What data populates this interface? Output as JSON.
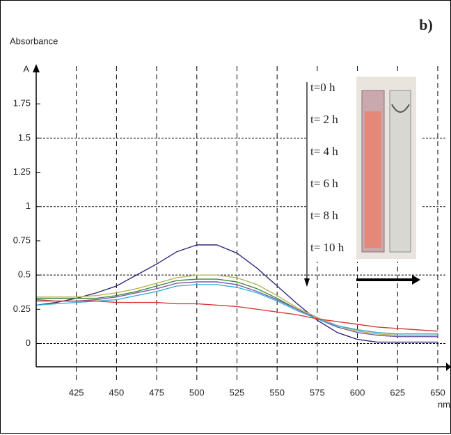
{
  "chart_data": {
    "type": "line",
    "panel_label": "b)",
    "y_label": "Absorbance",
    "y_axis_symbol": "A",
    "x_label": "nm",
    "time_labels": [
      "t=0 h",
      "t= 2 h",
      "t= 4 h",
      "t= 6 h",
      "t= 8 h",
      "t= 10 h"
    ],
    "x": [
      400,
      412.5,
      425,
      437.5,
      450,
      462.5,
      475,
      487.5,
      500,
      512.5,
      525,
      537.5,
      550,
      562.5,
      575,
      587.5,
      600,
      612.5,
      625,
      637.5,
      650
    ],
    "series": [
      {
        "color": "#2e2a7a",
        "values": [
          0.28,
          0.3,
          0.33,
          0.37,
          0.42,
          0.5,
          0.58,
          0.67,
          0.72,
          0.72,
          0.66,
          0.55,
          0.42,
          0.29,
          0.17,
          0.08,
          0.03,
          0.01,
          0.01,
          0.01,
          0.01
        ]
      },
      {
        "color": "#b8b25a",
        "values": [
          0.34,
          0.34,
          0.34,
          0.35,
          0.37,
          0.4,
          0.44,
          0.48,
          0.5,
          0.5,
          0.48,
          0.43,
          0.35,
          0.26,
          0.19,
          0.13,
          0.09,
          0.07,
          0.06,
          0.06,
          0.06
        ]
      },
      {
        "color": "#3f8a3f",
        "values": [
          0.33,
          0.33,
          0.33,
          0.33,
          0.35,
          0.38,
          0.42,
          0.46,
          0.47,
          0.47,
          0.45,
          0.4,
          0.33,
          0.25,
          0.18,
          0.13,
          0.1,
          0.08,
          0.07,
          0.07,
          0.07
        ]
      },
      {
        "color": "#7a5aa8",
        "values": [
          0.31,
          0.31,
          0.31,
          0.32,
          0.34,
          0.37,
          0.4,
          0.44,
          0.45,
          0.45,
          0.43,
          0.38,
          0.32,
          0.25,
          0.18,
          0.12,
          0.08,
          0.06,
          0.05,
          0.05,
          0.05
        ]
      },
      {
        "color": "#3ab0d8",
        "values": [
          0.28,
          0.29,
          0.3,
          0.31,
          0.32,
          0.35,
          0.38,
          0.42,
          0.43,
          0.43,
          0.41,
          0.37,
          0.31,
          0.24,
          0.18,
          0.13,
          0.1,
          0.08,
          0.07,
          0.07,
          0.07
        ]
      },
      {
        "color": "#d83a3a",
        "values": [
          0.32,
          0.31,
          0.31,
          0.31,
          0.3,
          0.3,
          0.3,
          0.29,
          0.29,
          0.28,
          0.27,
          0.25,
          0.23,
          0.21,
          0.18,
          0.16,
          0.14,
          0.12,
          0.11,
          0.1,
          0.09
        ]
      }
    ],
    "xlim": [
      400,
      655
    ],
    "ylim": [
      -0.17,
      2.0
    ],
    "xticks": [
      425,
      450,
      475,
      500,
      525,
      550,
      575,
      600,
      625,
      650
    ],
    "yticks": [
      0,
      0.25,
      0.5,
      0.75,
      1,
      1.25,
      1.5,
      1.75
    ],
    "y_grid": [
      0,
      0.5,
      1,
      1.5
    ],
    "grid": true
  }
}
